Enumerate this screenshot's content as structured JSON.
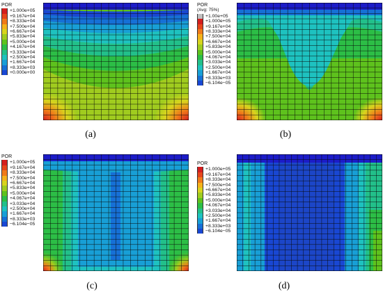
{
  "legend_colors": [
    "#bfbfbf",
    "#d41f1f",
    "#e6461c",
    "#f07a1a",
    "#f5b21b",
    "#d8d41e",
    "#a0cc1f",
    "#5ec21d",
    "#2cbe46",
    "#22c08a",
    "#1ec2c0",
    "#189fd6",
    "#1670d6",
    "#1947d3",
    "#1c1cc8"
  ],
  "panels": [
    {
      "id": "a",
      "caption": "(a)",
      "legend_title": "POR",
      "legend_subtitle": "",
      "labels": [
        "+1.000e+05",
        "+9.167e+04",
        "+8.333e+04",
        "+7.500e+04",
        "+6.667e+04",
        "+5.833e+04",
        "+5.000e+04",
        "+4.167e+04",
        "+3.333e+04",
        "+2.500e+04",
        "+1.667e+04",
        "+8.333e+03",
        "+0.000e+00"
      ]
    },
    {
      "id": "b",
      "caption": "(b)",
      "legend_title": "POR",
      "legend_subtitle": "(Avg: 75%)",
      "labels": [
        "+1.00e+05",
        "+1.000e+05",
        "+9.167e+04",
        "+8.333e+04",
        "+7.500e+04",
        "+6.667e+04",
        "+5.833e+04",
        "+5.000e+04",
        "+4.067e+04",
        "+3.033e+04",
        "+2.500e+04",
        "+1.667e+04",
        "+8.333e+03",
        "−6.104e−05"
      ]
    },
    {
      "id": "c",
      "caption": "(c)",
      "legend_title": "POR",
      "legend_subtitle": "",
      "labels": [
        "+1.000e+05",
        "+9.167e+04",
        "+8.333e+04",
        "+7.500e+04",
        "+6.667e+04",
        "+5.833e+04",
        "+5.000e+04",
        "+4.067e+04",
        "+3.033e+04",
        "+2.500e+04",
        "+1.667e+04",
        "+8.333e+03",
        "−6.104e−05"
      ]
    },
    {
      "id": "d",
      "caption": "(d)",
      "legend_title": "POR",
      "legend_subtitle": "",
      "labels": [
        "+1.000e+05",
        "+9.167e+04",
        "+8.333e+04",
        "+7.500e+04",
        "+6.667e+04",
        "+5.833e+04",
        "+5.000e+04",
        "+4.067e+04",
        "+3.033e+04",
        "+2.500e+04",
        "+1.667e+04",
        "+8.333e+03",
        "−6.104e−05"
      ]
    }
  ]
}
